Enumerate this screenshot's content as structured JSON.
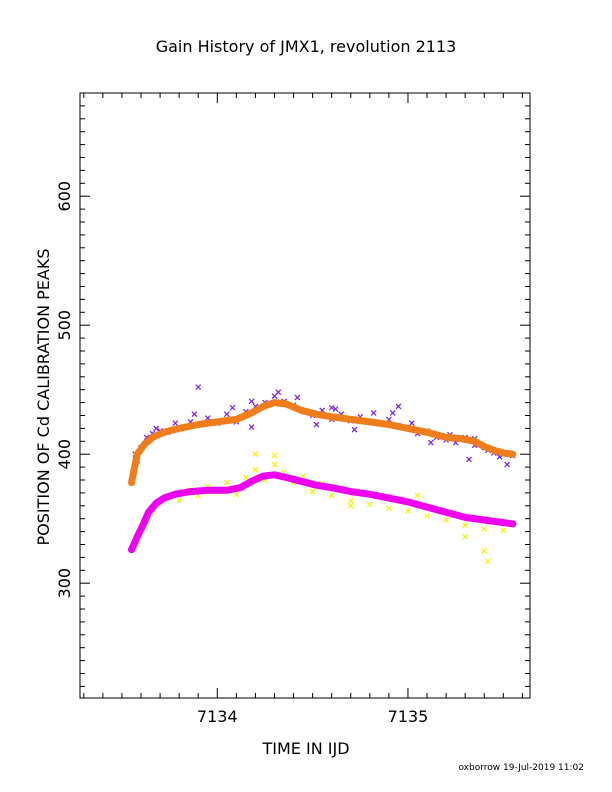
{
  "chart_data": {
    "type": "scatter",
    "title": "Gain History of JMX1, revolution 2113",
    "xlabel": "TIME IN IJD",
    "ylabel": "POSITION OF Cd CALIBRATION PEAKS",
    "xlim": [
      7133.28,
      7135.64
    ],
    "ylim": [
      211,
      680
    ],
    "x_ticks": [
      7134,
      7135
    ],
    "x_tick_labels": [
      "7134",
      "7135"
    ],
    "y_ticks": [
      300,
      400,
      500,
      600
    ],
    "y_tick_labels": [
      "300",
      "400",
      "500",
      "600"
    ],
    "grid": false,
    "footer": "oxborrow 19-Jul-2019 11:02",
    "colors": {
      "upper_points": "#7a1ee6",
      "upper_smooth": "#f07d1c",
      "lower_points": "#f5f000",
      "lower_smooth": "#f000f0"
    },
    "series": [
      {
        "kind": "points",
        "color_key": "upper_points",
        "points": [
          [
            7133.55,
            378
          ],
          [
            7133.57,
            400
          ],
          [
            7133.6,
            405
          ],
          [
            7133.63,
            413
          ],
          [
            7133.66,
            416
          ],
          [
            7133.7,
            418
          ],
          [
            7133.74,
            417
          ],
          [
            7133.78,
            424
          ],
          [
            7133.82,
            421
          ],
          [
            7133.86,
            425
          ],
          [
            7133.9,
            423
          ],
          [
            7133.95,
            428
          ],
          [
            7134.0,
            424
          ],
          [
            7134.05,
            431
          ],
          [
            7134.1,
            425
          ],
          [
            7134.15,
            433
          ],
          [
            7134.2,
            437
          ],
          [
            7134.25,
            440
          ],
          [
            7134.3,
            445
          ],
          [
            7134.35,
            441
          ],
          [
            7134.4,
            438
          ],
          [
            7134.45,
            433
          ],
          [
            7134.5,
            430
          ],
          [
            7134.55,
            434
          ],
          [
            7134.6,
            427
          ],
          [
            7134.65,
            431
          ],
          [
            7134.7,
            426
          ],
          [
            7134.75,
            429
          ],
          [
            7134.8,
            425
          ],
          [
            7134.85,
            424
          ],
          [
            7134.9,
            427
          ],
          [
            7134.95,
            422
          ],
          [
            7135.0,
            420
          ],
          [
            7135.05,
            416
          ],
          [
            7135.1,
            418
          ],
          [
            7135.15,
            413
          ],
          [
            7135.2,
            411
          ],
          [
            7135.25,
            409
          ],
          [
            7135.3,
            413
          ],
          [
            7135.35,
            407
          ],
          [
            7135.4,
            405
          ],
          [
            7135.45,
            401
          ],
          [
            7135.5,
            400
          ],
          [
            7135.55,
            399
          ],
          [
            7133.58,
            395
          ],
          [
            7133.68,
            420
          ],
          [
            7133.88,
            431
          ],
          [
            7134.08,
            436
          ],
          [
            7134.18,
            441
          ],
          [
            7134.32,
            448
          ],
          [
            7134.42,
            444
          ],
          [
            7134.52,
            423
          ],
          [
            7134.62,
            435
          ],
          [
            7134.72,
            419
          ],
          [
            7134.82,
            432
          ],
          [
            7134.92,
            432
          ],
          [
            7135.02,
            424
          ],
          [
            7135.12,
            409
          ],
          [
            7135.22,
            412
          ],
          [
            7135.32,
            396
          ],
          [
            7135.42,
            403
          ],
          [
            7135.52,
            392
          ],
          [
            7133.9,
            452
          ],
          [
            7134.18,
            421
          ],
          [
            7134.6,
            436
          ],
          [
            7134.95,
            437
          ],
          [
            7135.22,
            415
          ],
          [
            7135.35,
            412
          ],
          [
            7135.48,
            398
          ]
        ]
      },
      {
        "kind": "smooth",
        "color_key": "upper_smooth",
        "points": [
          [
            7133.55,
            378
          ],
          [
            7133.58,
            400
          ],
          [
            7133.62,
            408
          ],
          [
            7133.66,
            413
          ],
          [
            7133.72,
            417
          ],
          [
            7133.8,
            420
          ],
          [
            7133.9,
            423
          ],
          [
            7134.0,
            425
          ],
          [
            7134.1,
            427
          ],
          [
            7134.18,
            432
          ],
          [
            7134.24,
            437
          ],
          [
            7134.3,
            440
          ],
          [
            7134.36,
            439
          ],
          [
            7134.44,
            434
          ],
          [
            7134.52,
            431
          ],
          [
            7134.6,
            429
          ],
          [
            7134.7,
            427
          ],
          [
            7134.8,
            425
          ],
          [
            7134.9,
            423
          ],
          [
            7135.0,
            420
          ],
          [
            7135.1,
            417
          ],
          [
            7135.2,
            413
          ],
          [
            7135.28,
            412
          ],
          [
            7135.35,
            410
          ],
          [
            7135.4,
            406
          ],
          [
            7135.45,
            403
          ],
          [
            7135.5,
            401
          ],
          [
            7135.55,
            400
          ]
        ]
      },
      {
        "kind": "points",
        "color_key": "lower_points",
        "points": [
          [
            7133.58,
            330
          ],
          [
            7133.62,
            345
          ],
          [
            7133.66,
            355
          ],
          [
            7133.7,
            362
          ],
          [
            7133.75,
            367
          ],
          [
            7133.8,
            364
          ],
          [
            7133.85,
            372
          ],
          [
            7133.9,
            368
          ],
          [
            7133.95,
            375
          ],
          [
            7134.0,
            371
          ],
          [
            7134.05,
            378
          ],
          [
            7134.1,
            369
          ],
          [
            7134.15,
            382
          ],
          [
            7134.2,
            388
          ],
          [
            7134.25,
            380
          ],
          [
            7134.3,
            392
          ],
          [
            7134.35,
            386
          ],
          [
            7134.4,
            378
          ],
          [
            7134.45,
            383
          ],
          [
            7134.5,
            371
          ],
          [
            7134.55,
            377
          ],
          [
            7134.6,
            368
          ],
          [
            7134.65,
            374
          ],
          [
            7134.7,
            364
          ],
          [
            7134.75,
            370
          ],
          [
            7134.8,
            361
          ],
          [
            7134.85,
            367
          ],
          [
            7134.9,
            358
          ],
          [
            7134.95,
            364
          ],
          [
            7135.0,
            356
          ],
          [
            7135.05,
            360
          ],
          [
            7135.1,
            352
          ],
          [
            7135.15,
            357
          ],
          [
            7135.2,
            349
          ],
          [
            7135.25,
            353
          ],
          [
            7135.3,
            345
          ],
          [
            7135.35,
            350
          ],
          [
            7135.4,
            342
          ],
          [
            7135.45,
            347
          ],
          [
            7135.5,
            341
          ],
          [
            7135.55,
            346
          ],
          [
            7134.2,
            400
          ],
          [
            7134.3,
            399
          ],
          [
            7135.4,
            325
          ],
          [
            7135.42,
            317
          ],
          [
            7134.7,
            360
          ],
          [
            7135.05,
            368
          ],
          [
            7135.3,
            336
          ]
        ]
      },
      {
        "kind": "smooth",
        "color_key": "lower_smooth",
        "points": [
          [
            7133.55,
            326
          ],
          [
            7133.58,
            336
          ],
          [
            7133.61,
            345
          ],
          [
            7133.64,
            355
          ],
          [
            7133.68,
            362
          ],
          [
            7133.72,
            366
          ],
          [
            7133.78,
            369
          ],
          [
            7133.86,
            371
          ],
          [
            7133.95,
            372
          ],
          [
            7134.05,
            372
          ],
          [
            7134.12,
            374
          ],
          [
            7134.18,
            379
          ],
          [
            7134.24,
            383
          ],
          [
            7134.3,
            384
          ],
          [
            7134.36,
            382
          ],
          [
            7134.44,
            379
          ],
          [
            7134.52,
            376
          ],
          [
            7134.6,
            374
          ],
          [
            7134.7,
            371
          ],
          [
            7134.8,
            369
          ],
          [
            7134.9,
            366
          ],
          [
            7135.0,
            363
          ],
          [
            7135.1,
            359
          ],
          [
            7135.2,
            355
          ],
          [
            7135.3,
            351
          ],
          [
            7135.4,
            349
          ],
          [
            7135.5,
            347
          ],
          [
            7135.55,
            346
          ]
        ]
      }
    ]
  }
}
